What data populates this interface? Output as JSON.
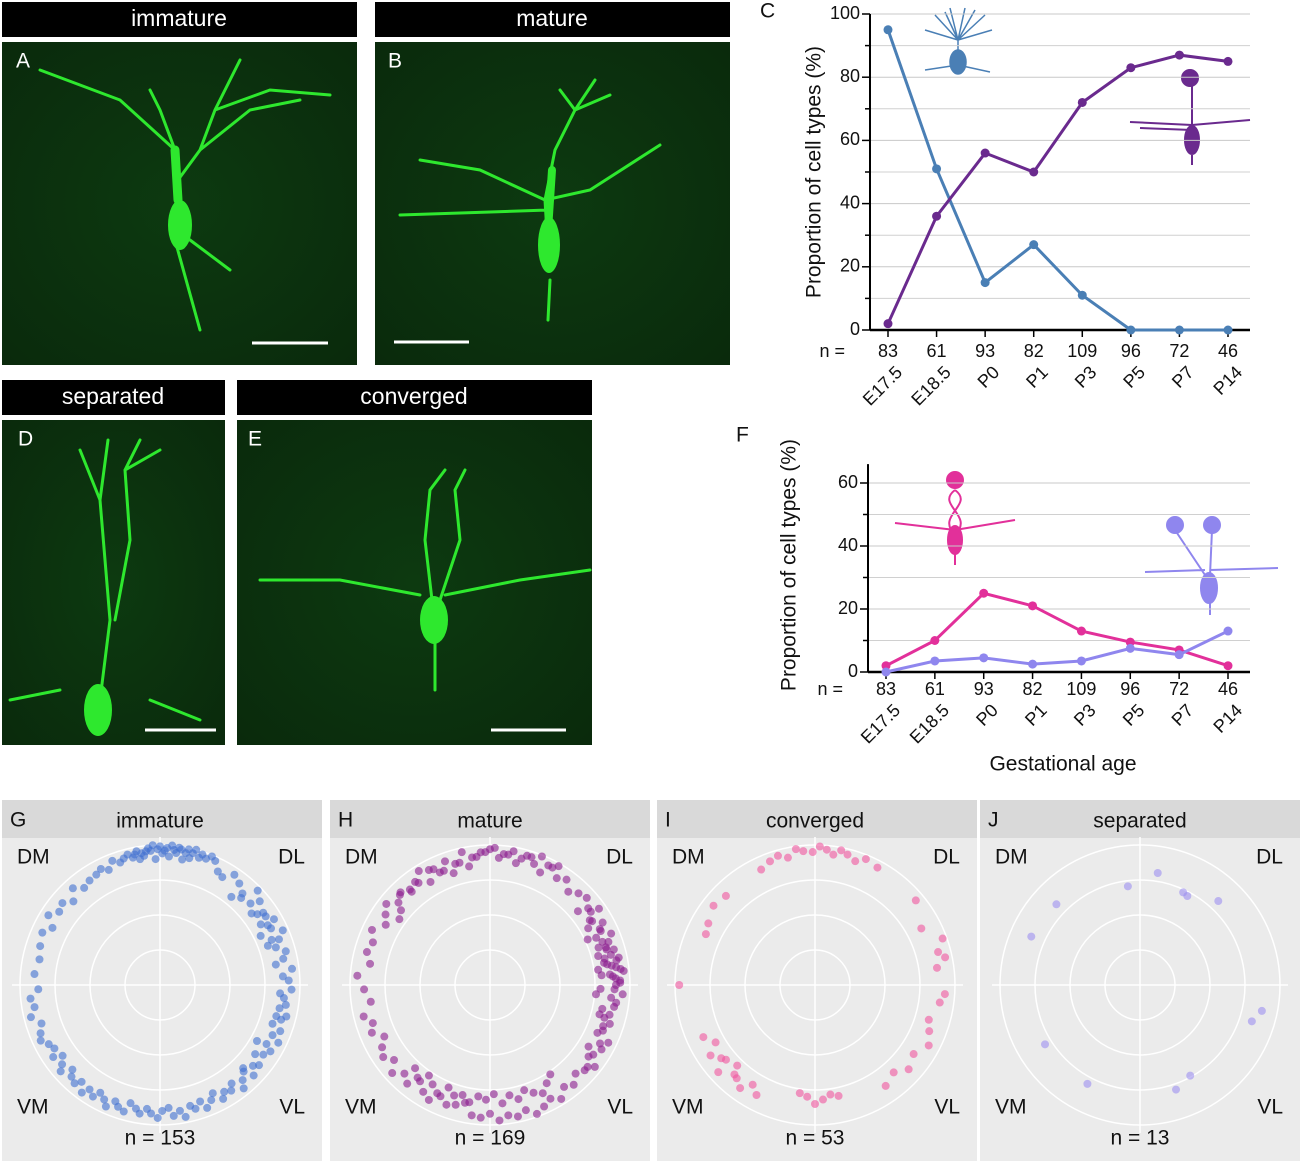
{
  "panels": [
    {
      "label": "A",
      "title": "immature"
    },
    {
      "label": "B",
      "title": "mature"
    },
    {
      "label": "D",
      "title": "separated"
    },
    {
      "label": "E",
      "title": "converged"
    }
  ],
  "chart_data": [
    {
      "type": "line",
      "label": "C",
      "ylabel": "Proportion of cell types (%)",
      "categories": [
        "E17.5",
        "E18.5",
        "P0",
        "P1",
        "P3",
        "P5",
        "P7",
        "P14"
      ],
      "n_label": "n =",
      "n_values": [
        83,
        61,
        93,
        82,
        109,
        96,
        72,
        46
      ],
      "series": [
        {
          "color": "#4a7fb5",
          "values": [
            95,
            51,
            15,
            27,
            11,
            0,
            0,
            0
          ]
        },
        {
          "color": "#6a2a8e",
          "values": [
            2,
            36,
            56,
            50,
            72,
            83,
            87,
            85
          ]
        }
      ],
      "ylim": [
        0,
        100
      ],
      "yticks": [
        0,
        20,
        40,
        60,
        80,
        100
      ],
      "minor_ticks": [
        10,
        30,
        50,
        70,
        90
      ],
      "grid": true
    },
    {
      "type": "line",
      "label": "F",
      "ylabel": "Proportion of cell types (%)",
      "xlabel": "Gestational age",
      "categories": [
        "E17.5",
        "E18.5",
        "P0",
        "P1",
        "P3",
        "P5",
        "P7",
        "P14"
      ],
      "n_label": "n =",
      "n_values": [
        83,
        61,
        93,
        82,
        109,
        96,
        72,
        46
      ],
      "series": [
        {
          "color": "#e2309a",
          "values": [
            2,
            10,
            25,
            21,
            13,
            9.5,
            7,
            2
          ]
        },
        {
          "color": "#8f86ee",
          "values": [
            0,
            3.5,
            4.5,
            2.5,
            3.5,
            7.5,
            5.5,
            13
          ]
        }
      ],
      "ylim": [
        0,
        66
      ],
      "yticks": [
        0,
        20,
        40,
        60
      ],
      "minor_ticks": [
        10,
        30,
        50
      ],
      "grid": true
    },
    {
      "type": "polar",
      "label": "G",
      "title": "immature",
      "corners": [
        "DM",
        "DL",
        "VM",
        "VL"
      ],
      "n_label": "n = 153",
      "color": "#3f6fd1",
      "angles": [
        2,
        4,
        7,
        10,
        12,
        15,
        18,
        21,
        24,
        27,
        30,
        33,
        36,
        40,
        44,
        48,
        52,
        56,
        60,
        63,
        66,
        68,
        70,
        72,
        73,
        75,
        76,
        78,
        79,
        81,
        82,
        84,
        85,
        87,
        88,
        90,
        91,
        93,
        95,
        96,
        98,
        100,
        102,
        104,
        106,
        108,
        111,
        114,
        117,
        120,
        124,
        128,
        132,
        136,
        140,
        144,
        148,
        152,
        156,
        162,
        168,
        175,
        182,
        186,
        190,
        194,
        198,
        202,
        205,
        208,
        211,
        214,
        216,
        219,
        221,
        224,
        226,
        229,
        231,
        234,
        236,
        239,
        241,
        244,
        246,
        249,
        251,
        254,
        256,
        259,
        261,
        264,
        266,
        269,
        271,
        274,
        276,
        279,
        281,
        284,
        286,
        289,
        291,
        294,
        296,
        299,
        301,
        304,
        306,
        309,
        311,
        314,
        316,
        319,
        321,
        324,
        326,
        329,
        331,
        334,
        336,
        339,
        341,
        344,
        346,
        349,
        351,
        354,
        356,
        358,
        20,
        22,
        26,
        29,
        31,
        35,
        38,
        42,
        47,
        51,
        77,
        80,
        83,
        86,
        89,
        92,
        94,
        97,
        99,
        101,
        315,
        330,
        345
      ],
      "radii": [
        0.92,
        0.88,
        0.95,
        0.84,
        0.9,
        0.93,
        0.87,
        0.91,
        0.96,
        0.89,
        0.94,
        0.9,
        0.86,
        0.93,
        0.97,
        0.88,
        0.92,
        0.95,
        0.89,
        0.91,
        0.97,
        0.99,
        0.96,
        0.98,
        0.95,
        1.0,
        0.97,
        0.99,
        0.96,
        0.98,
        0.99,
        0.97,
        1.0,
        0.98,
        0.96,
        0.99,
        0.97,
        1.0,
        0.98,
        0.96,
        0.95,
        0.97,
        0.93,
        0.96,
        0.94,
        0.92,
        0.95,
        0.9,
        0.93,
        0.91,
        0.9,
        0.88,
        0.93,
        0.86,
        0.91,
        0.89,
        0.94,
        0.87,
        0.92,
        0.9,
        0.88,
        0.9,
        0.87,
        0.93,
        0.91,
        0.95,
        0.89,
        0.92,
        0.94,
        0.9,
        0.88,
        0.92,
        0.86,
        0.9,
        0.94,
        0.87,
        0.91,
        0.93,
        0.89,
        0.95,
        0.9,
        0.93,
        0.88,
        0.91,
        0.95,
        0.89,
        0.92,
        0.94,
        0.87,
        0.9,
        0.93,
        0.89,
        0.92,
        0.95,
        0.9,
        0.88,
        0.94,
        0.91,
        0.96,
        0.89,
        0.92,
        0.88,
        0.94,
        0.9,
        0.86,
        0.93,
        0.89,
        0.91,
        0.87,
        0.95,
        0.9,
        0.86,
        0.93,
        0.88,
        0.91,
        0.84,
        0.89,
        0.92,
        0.87,
        0.94,
        0.88,
        0.92,
        0.85,
        0.9,
        0.93,
        0.87,
        0.91,
        0.89,
        0.86,
        0.94,
        0.82,
        0.86,
        0.8,
        0.88,
        0.84,
        0.9,
        0.83,
        0.87,
        0.85,
        0.81,
        0.93,
        0.91,
        0.95,
        0.92,
        0.94,
        0.9,
        0.96,
        0.93,
        0.91,
        0.95,
        0.84,
        0.8,
        0.86
      ]
    },
    {
      "type": "polar",
      "label": "H",
      "title": "mature",
      "corners": [
        "DM",
        "DL",
        "VM",
        "VL"
      ],
      "n_label": "n = 169",
      "color": "#8a1a8e",
      "angles": [
        0,
        2,
        4,
        6,
        8,
        10,
        12,
        14,
        16,
        18,
        352,
        354,
        356,
        358,
        1,
        3,
        5,
        7,
        9,
        11,
        20,
        23,
        26,
        29,
        32,
        35,
        38,
        42,
        46,
        50,
        54,
        58,
        62,
        66,
        70,
        74,
        78,
        82,
        86,
        90,
        94,
        98,
        102,
        106,
        110,
        114,
        118,
        122,
        126,
        130,
        134,
        138,
        142,
        146,
        150,
        155,
        160,
        165,
        170,
        176,
        182,
        188,
        194,
        198,
        202,
        206,
        210,
        214,
        218,
        222,
        226,
        230,
        234,
        238,
        242,
        246,
        250,
        254,
        258,
        262,
        266,
        270,
        274,
        278,
        282,
        286,
        290,
        294,
        298,
        302,
        306,
        310,
        314,
        318,
        322,
        326,
        330,
        334,
        338,
        342,
        344,
        346,
        348,
        350,
        340,
        336,
        332,
        328,
        324,
        320,
        13,
        15,
        17,
        19,
        21,
        24,
        27,
        30,
        33,
        36,
        60,
        64,
        68,
        72,
        76,
        80,
        84,
        88,
        92,
        96,
        100,
        104,
        108,
        112,
        116,
        120,
        125,
        130,
        135,
        140,
        228,
        232,
        236,
        240,
        244,
        248,
        252,
        256,
        260,
        264,
        268,
        272,
        276,
        280,
        284,
        288,
        292,
        296,
        300,
        304,
        5,
        8,
        11,
        355,
        358,
        345,
        25,
        40,
        144
      ],
      "radii": [
        0.9,
        0.93,
        0.88,
        0.96,
        0.91,
        0.85,
        0.94,
        0.89,
        0.92,
        0.87,
        0.91,
        0.87,
        0.95,
        0.89,
        0.93,
        0.9,
        0.86,
        0.94,
        0.88,
        0.92,
        0.9,
        0.94,
        0.88,
        0.92,
        0.86,
        0.95,
        0.89,
        0.93,
        0.91,
        0.87,
        0.93,
        0.9,
        0.95,
        0.88,
        0.92,
        0.96,
        0.89,
        0.94,
        0.91,
        0.97,
        0.95,
        0.92,
        0.97,
        0.9,
        0.94,
        0.88,
        0.93,
        0.96,
        0.91,
        0.89,
        0.92,
        0.88,
        0.94,
        0.9,
        0.86,
        0.93,
        0.89,
        0.91,
        0.87,
        0.95,
        0.9,
        0.86,
        0.93,
        0.88,
        0.91,
        0.84,
        0.89,
        0.92,
        0.87,
        0.94,
        0.88,
        0.92,
        0.85,
        0.9,
        0.93,
        0.87,
        0.91,
        0.89,
        0.86,
        0.94,
        0.95,
        0.92,
        0.97,
        0.94,
        0.96,
        0.93,
        0.98,
        0.95,
        0.92,
        0.96,
        0.9,
        0.93,
        0.88,
        0.91,
        0.95,
        0.89,
        0.92,
        0.94,
        0.87,
        0.9,
        0.85,
        0.88,
        0.82,
        0.9,
        0.86,
        0.84,
        0.89,
        0.83,
        0.87,
        0.91,
        0.84,
        0.8,
        0.87,
        0.82,
        0.86,
        0.83,
        0.88,
        0.81,
        0.85,
        0.89,
        0.98,
        0.95,
        0.99,
        0.96,
        0.93,
        0.97,
        0.94,
        0.98,
        0.95,
        0.92,
        0.86,
        0.9,
        0.84,
        0.88,
        0.92,
        0.85,
        0.89,
        0.87,
        0.91,
        0.83,
        0.8,
        0.84,
        0.78,
        0.82,
        0.86,
        0.79,
        0.83,
        0.81,
        0.85,
        0.8,
        0.82,
        0.78,
        0.85,
        0.8,
        0.84,
        0.79,
        0.83,
        0.86,
        0.81,
        0.77,
        0.8,
        0.78,
        0.83,
        0.76,
        0.79,
        0.81,
        0.77,
        0.82,
        0.8
      ]
    },
    {
      "type": "polar",
      "label": "I",
      "title": "converged",
      "corners": [
        "DM",
        "DL",
        "VM",
        "VL"
      ],
      "n_label": "n = 53",
      "color": "#f0559e",
      "angles": [
        62,
        68,
        72,
        76,
        79,
        82,
        85,
        88,
        91,
        95,
        98,
        102,
        106,
        110,
        115,
        135,
        142,
        150,
        155,
        180,
        205,
        210,
        214,
        218,
        222,
        226,
        230,
        234,
        238,
        242,
        228,
        220,
        262,
        266,
        270,
        274,
        278,
        282,
        305,
        312,
        318,
        325,
        332,
        338,
        343,
        352,
        356,
        8,
        12,
        15,
        20,
        28,
        40
      ],
      "radii": [
        0.95,
        0.97,
        0.93,
        0.96,
        0.98,
        0.94,
        0.97,
        0.99,
        0.95,
        0.96,
        0.98,
        0.93,
        0.96,
        0.94,
        0.91,
        0.9,
        0.92,
        0.88,
        0.86,
        0.97,
        0.88,
        0.82,
        0.9,
        0.85,
        0.93,
        0.8,
        0.87,
        0.91,
        0.84,
        0.89,
        0.86,
        0.83,
        0.78,
        0.8,
        0.85,
        0.82,
        0.79,
        0.81,
        0.88,
        0.84,
        0.9,
        0.86,
        0.92,
        0.88,
        0.85,
        0.9,
        0.93,
        0.88,
        0.95,
        0.91,
        0.97,
        0.86,
        0.94
      ]
    },
    {
      "type": "polar",
      "label": "J",
      "title": "separated",
      "corners": [
        "DM",
        "DL",
        "VM",
        "VL"
      ],
      "n_label": "n = 13",
      "color": "#9c8ff0",
      "angles": [
        136,
        156,
        97,
        81,
        65,
        62,
        47,
        348,
        342,
        212,
        242,
        299,
        289
      ],
      "radii": [
        0.83,
        0.85,
        0.71,
        0.81,
        0.73,
        0.72,
        0.82,
        0.89,
        0.84,
        0.8,
        0.8,
        0.74,
        0.79
      ]
    }
  ]
}
